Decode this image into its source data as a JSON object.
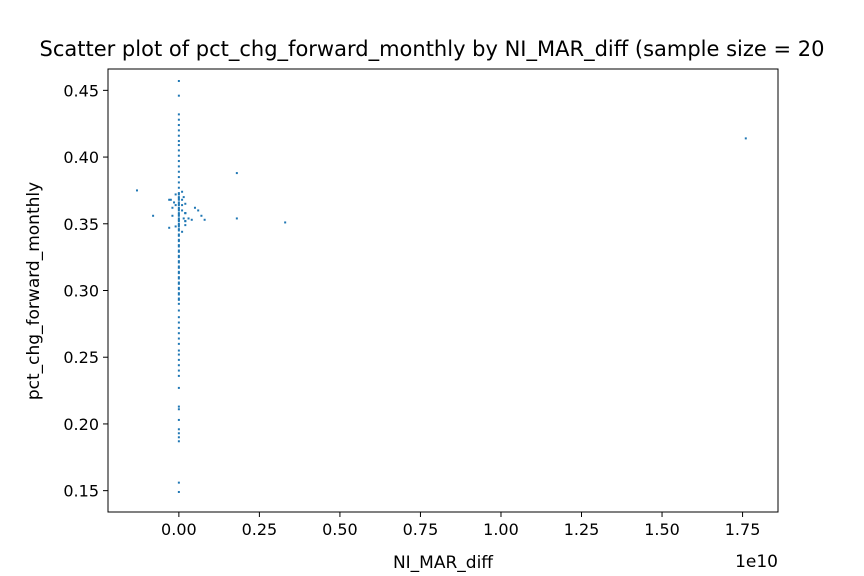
{
  "chart_data": {
    "type": "scatter",
    "title": "Scatter plot of pct_chg_forward_monthly by NI_MAR_diff (sample size = 20",
    "xlabel": "NI_MAR_diff",
    "ylabel": "pct_chg_forward_monthly",
    "x_offset_label": "1e10",
    "x_scale": 10000000000,
    "xlim": [
      -0.22,
      1.86
    ],
    "ylim": [
      0.134,
      0.466
    ],
    "x_ticks": [
      0.0,
      0.25,
      0.5,
      0.75,
      1.0,
      1.25,
      1.5,
      1.75
    ],
    "x_tick_labels": [
      "0.00",
      "0.25",
      "0.50",
      "0.75",
      "1.00",
      "1.25",
      "1.50",
      "1.75"
    ],
    "y_ticks": [
      0.15,
      0.2,
      0.25,
      0.3,
      0.35,
      0.4,
      0.45
    ],
    "y_tick_labels": [
      "0.15",
      "0.20",
      "0.25",
      "0.30",
      "0.35",
      "0.40",
      "0.45"
    ],
    "grid": false,
    "legend": "none",
    "color": "#1f77b4",
    "series": [
      {
        "x": [
          0,
          0,
          0,
          0,
          0,
          0,
          0,
          0,
          0,
          0,
          0,
          0,
          0,
          0,
          0,
          0,
          0,
          0,
          0,
          0,
          0,
          0,
          0,
          0,
          0,
          0,
          0,
          0,
          0,
          0,
          0,
          0,
          0,
          0,
          0,
          0,
          0,
          0,
          0,
          0,
          0,
          0,
          0,
          0,
          0,
          0,
          0,
          0,
          0,
          0,
          0,
          0,
          0,
          0,
          0,
          0,
          0,
          0,
          0,
          0,
          0,
          0,
          0,
          0,
          0,
          0,
          0,
          0,
          0,
          0,
          0,
          0,
          0,
          0,
          0,
          0,
          0,
          0,
          0,
          0,
          0,
          0,
          0,
          0,
          0,
          0,
          0,
          0,
          0,
          -0.01,
          0.01,
          -0.01,
          0.01,
          -0.02,
          0.02,
          -0.01,
          0.01,
          -0.02,
          0.02,
          -0.015,
          0.015,
          -0.13,
          -0.08,
          -0.03,
          -0.025,
          -0.03,
          0.01,
          0.02,
          0.015,
          0.02,
          0.04,
          0.02,
          0.05,
          0.02,
          0.06,
          0.03,
          0.01,
          0.02,
          0.07,
          0.08,
          0.18,
          0.18,
          0.33,
          1.76
        ],
        "y": [
          0.457,
          0.446,
          0.432,
          0.428,
          0.424,
          0.42,
          0.416,
          0.412,
          0.409,
          0.405,
          0.401,
          0.397,
          0.393,
          0.389,
          0.385,
          0.381,
          0.377,
          0.373,
          0.369,
          0.365,
          0.361,
          0.357,
          0.353,
          0.349,
          0.345,
          0.341,
          0.337,
          0.333,
          0.329,
          0.325,
          0.321,
          0.317,
          0.313,
          0.309,
          0.305,
          0.301,
          0.297,
          0.293,
          0.29,
          0.285,
          0.28,
          0.276,
          0.272,
          0.268,
          0.264,
          0.26,
          0.255,
          0.252,
          0.248,
          0.244,
          0.24,
          0.236,
          0.227,
          0.213,
          0.211,
          0.203,
          0.196,
          0.193,
          0.19,
          0.187,
          0.156,
          0.149,
          0.37,
          0.366,
          0.362,
          0.358,
          0.354,
          0.35,
          0.346,
          0.342,
          0.338,
          0.334,
          0.33,
          0.326,
          0.322,
          0.318,
          0.314,
          0.31,
          0.306,
          0.302,
          0.298,
          0.294,
          0.372,
          0.368,
          0.364,
          0.36,
          0.356,
          0.352,
          0.348,
          0.372,
          0.368,
          0.364,
          0.36,
          0.356,
          0.352,
          0.348,
          0.344,
          0.362,
          0.358,
          0.366,
          0.354,
          0.375,
          0.356,
          0.368,
          0.368,
          0.347,
          0.364,
          0.358,
          0.37,
          0.352,
          0.353,
          0.349,
          0.362,
          0.358,
          0.36,
          0.354,
          0.374,
          0.365,
          0.356,
          0.353,
          0.388,
          0.354,
          0.351,
          0.414
        ]
      }
    ]
  }
}
